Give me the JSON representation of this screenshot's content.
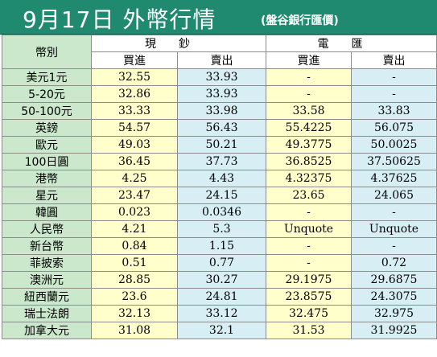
{
  "header": {
    "title": "9月17日 外幣行情",
    "subtitle": "(盤谷銀行匯價)"
  },
  "table": {
    "currency_header": "幣別",
    "cash_header": "現鈔",
    "tt_header": "電匯",
    "buy_label": "買進",
    "sell_label": "賣出",
    "rows": [
      {
        "name": "美元1元",
        "cash_buy": "32.55",
        "cash_sell": "33.93",
        "tt_buy": "-",
        "tt_sell": "-"
      },
      {
        "name": "5-20元",
        "cash_buy": "32.86",
        "cash_sell": "33.93",
        "tt_buy": "-",
        "tt_sell": "-"
      },
      {
        "name": "50-100元",
        "cash_buy": "33.33",
        "cash_sell": "33.98",
        "tt_buy": "33.58",
        "tt_sell": "33.83"
      },
      {
        "name": "英鎊",
        "cash_buy": "54.57",
        "cash_sell": "56.43",
        "tt_buy": "55.4225",
        "tt_sell": "56.075"
      },
      {
        "name": "歐元",
        "cash_buy": "49.03",
        "cash_sell": "50.21",
        "tt_buy": "49.3775",
        "tt_sell": "50.0025"
      },
      {
        "name": "100日圓",
        "cash_buy": "36.45",
        "cash_sell": "37.73",
        "tt_buy": "36.8525",
        "tt_sell": "37.50625"
      },
      {
        "name": "港幣",
        "cash_buy": "4.25",
        "cash_sell": "4.43",
        "tt_buy": "4.32375",
        "tt_sell": "4.37625"
      },
      {
        "name": "星元",
        "cash_buy": "23.47",
        "cash_sell": "24.15",
        "tt_buy": "23.65",
        "tt_sell": "24.065"
      },
      {
        "name": "韓圓",
        "cash_buy": "0.023",
        "cash_sell": "0.0346",
        "tt_buy": "-",
        "tt_sell": "-"
      },
      {
        "name": "人民幣",
        "cash_buy": "4.21",
        "cash_sell": "5.3",
        "tt_buy": "Unquote",
        "tt_sell": "Unquote"
      },
      {
        "name": "新台幣",
        "cash_buy": "0.84",
        "cash_sell": "1.15",
        "tt_buy": "-",
        "tt_sell": "-"
      },
      {
        "name": "菲披索",
        "cash_buy": "0.51",
        "cash_sell": "0.77",
        "tt_buy": "-",
        "tt_sell": "0.72"
      },
      {
        "name": "澳洲元",
        "cash_buy": "28.85",
        "cash_sell": "30.27",
        "tt_buy": "29.1975",
        "tt_sell": "29.6875"
      },
      {
        "name": "紐西蘭元",
        "cash_buy": "23.6",
        "cash_sell": "24.81",
        "tt_buy": "23.8575",
        "tt_sell": "24.3075"
      },
      {
        "name": "瑞士法朗",
        "cash_buy": "32.13",
        "cash_sell": "33.12",
        "tt_buy": "32.475",
        "tt_sell": "32.975"
      },
      {
        "name": "加拿大元",
        "cash_buy": "31.08",
        "cash_sell": "32.1",
        "tt_buy": "31.53",
        "tt_sell": "31.9925"
      }
    ]
  },
  "colors": {
    "banner": "#208a70",
    "currency_column": "#cce8cc",
    "buy_column": "#ffffcc",
    "sell_column": "#d6eef4"
  }
}
